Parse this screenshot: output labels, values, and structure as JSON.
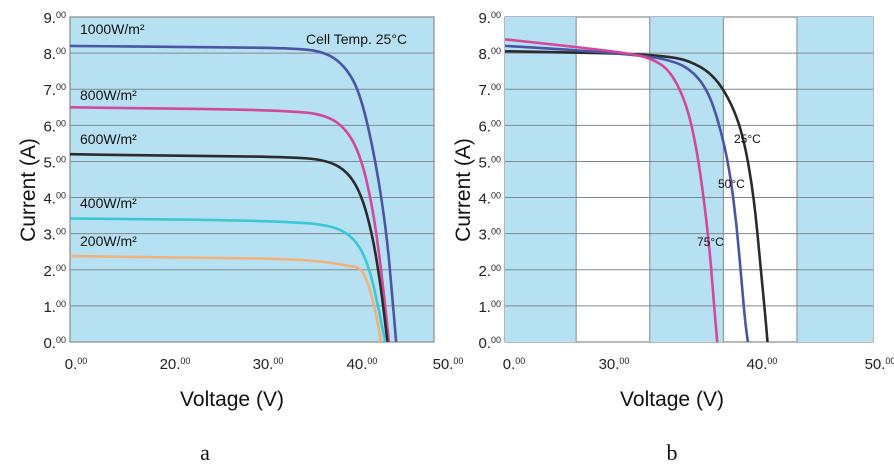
{
  "chart_data": [
    {
      "type": "line",
      "title": "",
      "caption": "a",
      "note": "Cell Temp. 25°C",
      "xlabel": "Voltage (V)",
      "ylabel": "Current (A)",
      "xlim": [
        0,
        50
      ],
      "ylim": [
        0,
        9
      ],
      "xticks": [
        "0.00",
        "20.00",
        "30.00",
        "40.00",
        "50.00"
      ],
      "yticks": [
        "0.00",
        "1.00",
        "2.00",
        "3.00",
        "4.00",
        "5.00",
        "6.00",
        "7.00",
        "8.00",
        "9.00"
      ],
      "grid": true,
      "series": [
        {
          "name": "1000W/m²",
          "color": "#4a55a6",
          "points": [
            [
              0,
              8.2
            ],
            [
              10,
              8.18
            ],
            [
              20,
              8.16
            ],
            [
              30,
              8.14
            ],
            [
              35,
              8.05
            ],
            [
              38,
              7.6
            ],
            [
              40,
              6.8
            ],
            [
              42,
              5.0
            ],
            [
              43.5,
              3.0
            ],
            [
              44.3,
              1.2
            ],
            [
              44.8,
              0
            ]
          ]
        },
        {
          "name": "800W/m²",
          "color": "#d2489a",
          "points": [
            [
              0,
              6.5
            ],
            [
              10,
              6.47
            ],
            [
              20,
              6.45
            ],
            [
              30,
              6.4
            ],
            [
              35,
              6.3
            ],
            [
              38,
              5.9
            ],
            [
              40,
              5.1
            ],
            [
              41.5,
              3.8
            ],
            [
              42.5,
              2.4
            ],
            [
              43.3,
              1.0
            ],
            [
              43.8,
              0
            ]
          ]
        },
        {
          "name": "600W/m²",
          "color": "#2b2b2b",
          "points": [
            [
              0,
              5.2
            ],
            [
              10,
              5.17
            ],
            [
              20,
              5.15
            ],
            [
              30,
              5.12
            ],
            [
              35,
              5.05
            ],
            [
              38,
              4.75
            ],
            [
              40,
              4.1
            ],
            [
              41.5,
              3.0
            ],
            [
              42.5,
              1.8
            ],
            [
              43.2,
              0.7
            ],
            [
              43.6,
              0
            ]
          ]
        },
        {
          "name": "400W/m²",
          "color": "#3cc7d6",
          "points": [
            [
              0,
              3.42
            ],
            [
              10,
              3.4
            ],
            [
              20,
              3.38
            ],
            [
              30,
              3.33
            ],
            [
              35,
              3.25
            ],
            [
              38,
              3.05
            ],
            [
              40,
              2.6
            ],
            [
              41.3,
              1.9
            ],
            [
              42.2,
              1.1
            ],
            [
              42.9,
              0.4
            ],
            [
              43.3,
              0
            ]
          ]
        },
        {
          "name": "200W/m²",
          "color": "#f0b27a",
          "points": [
            [
              0,
              2.38
            ],
            [
              10,
              2.35
            ],
            [
              20,
              2.33
            ],
            [
              30,
              2.3
            ],
            [
              35,
              2.22
            ],
            [
              38,
              2.12
            ],
            [
              40,
              2.05
            ],
            [
              41,
              1.6
            ],
            [
              41.8,
              1.0
            ],
            [
              42.4,
              0.4
            ],
            [
              42.7,
              0
            ]
          ]
        }
      ]
    },
    {
      "type": "line",
      "title": "",
      "caption": "b",
      "xlabel": "Voltage (V)",
      "ylabel": "Current (A)",
      "xlim": [
        20,
        50
      ],
      "ylim": [
        0,
        9
      ],
      "xticks": [
        "0.00",
        "30.00",
        "40.00",
        "50.00"
      ],
      "yticks": [
        "0.00",
        "1.00",
        "2.00",
        "3.00",
        "4.00",
        "5.00",
        "6.00",
        "7.00",
        "8.00",
        "9.00"
      ],
      "grid": true,
      "series": [
        {
          "name": "25°C",
          "color": "#2b2b2b",
          "points": [
            [
              20,
              8.05
            ],
            [
              25,
              8.02
            ],
            [
              30,
              7.98
            ],
            [
              33,
              7.92
            ],
            [
              35,
              7.8
            ],
            [
              37,
              7.4
            ],
            [
              38.5,
              6.6
            ],
            [
              39.5,
              5.6
            ],
            [
              40.3,
              4.0
            ],
            [
              40.8,
              2.2
            ],
            [
              41.2,
              0.8
            ],
            [
              41.4,
              0
            ]
          ]
        },
        {
          "name": "50°C",
          "color": "#4a55a6",
          "points": [
            [
              20,
              8.2
            ],
            [
              25,
              8.1
            ],
            [
              30,
              7.97
            ],
            [
              33,
              7.85
            ],
            [
              35,
              7.6
            ],
            [
              36.5,
              7.0
            ],
            [
              37.5,
              6.0
            ],
            [
              38.3,
              4.8
            ],
            [
              38.9,
              3.2
            ],
            [
              39.3,
              1.6
            ],
            [
              39.6,
              0.5
            ],
            [
              39.8,
              0
            ]
          ]
        },
        {
          "name": "75°C",
          "color": "#d2489a",
          "points": [
            [
              20,
              8.38
            ],
            [
              25,
              8.2
            ],
            [
              30,
              8.0
            ],
            [
              32,
              7.85
            ],
            [
              33.5,
              7.5
            ],
            [
              34.8,
              6.6
            ],
            [
              35.6,
              5.4
            ],
            [
              36.2,
              4.0
            ],
            [
              36.7,
              2.5
            ],
            [
              37.0,
              1.2
            ],
            [
              37.2,
              0.4
            ],
            [
              37.3,
              0
            ]
          ]
        }
      ]
    }
  ]
}
